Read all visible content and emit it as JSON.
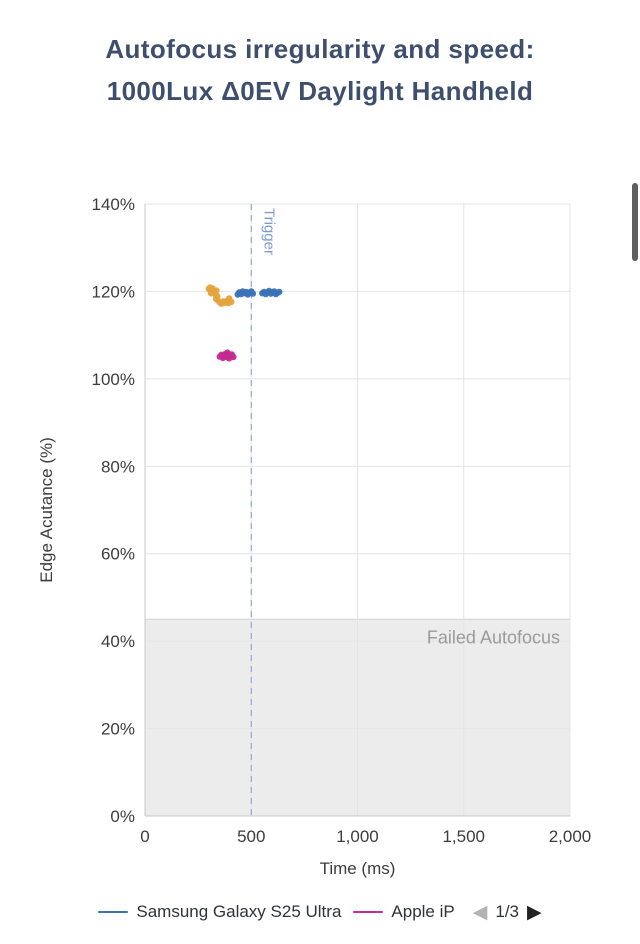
{
  "title": {
    "line1": "Autofocus irregularity and speed:",
    "line2": "1000Lux Δ0EV Daylight Handheld"
  },
  "chart_data": {
    "type": "scatter",
    "title": "Autofocus irregularity and speed: 1000Lux Δ0EV Daylight Handheld",
    "xlabel": "Time (ms)",
    "ylabel": "Edge Acutance (%)",
    "xlim": [
      0,
      2000
    ],
    "ylim": [
      0,
      140
    ],
    "x_ticks": [
      0,
      500,
      1000,
      1500,
      2000
    ],
    "x_tick_labels": [
      "0",
      "500",
      "1,000",
      "1,500",
      "2,000"
    ],
    "y_ticks": [
      0,
      20,
      40,
      60,
      80,
      100,
      120,
      140
    ],
    "y_tick_labels": [
      "0%",
      "20%",
      "40%",
      "60%",
      "80%",
      "100%",
      "120%",
      "140%"
    ],
    "grid": true,
    "grid_color": "#e4e4e4",
    "axis_color": "#c9c9c9",
    "trigger": {
      "x": 500,
      "label": "Trigger",
      "color": "#7f9bcd"
    },
    "failed_region": {
      "y_min": 0,
      "y_max": 45,
      "label": "Failed Autofocus",
      "fill": "#ececec",
      "border": "#d2d2d2",
      "label_color": "#9b9b9b"
    },
    "series": [
      {
        "name": "Samsung Galaxy S25 Ultra",
        "color": "#3a72b8",
        "points": [
          [
            436,
            119.3
          ],
          [
            444,
            119.8
          ],
          [
            452,
            119.4
          ],
          [
            460,
            120.0
          ],
          [
            468,
            119.6
          ],
          [
            476,
            119.9
          ],
          [
            484,
            119.3
          ],
          [
            492,
            119.7
          ],
          [
            500,
            120.0
          ],
          [
            508,
            119.5
          ],
          [
            552,
            119.6
          ],
          [
            560,
            119.9
          ],
          [
            568,
            119.4
          ],
          [
            576,
            119.8
          ],
          [
            584,
            120.1
          ],
          [
            592,
            119.5
          ],
          [
            600,
            119.8
          ],
          [
            608,
            120.0
          ],
          [
            616,
            119.4
          ],
          [
            624,
            119.7
          ],
          [
            632,
            119.9
          ]
        ]
      },
      {
        "name": "Apple iP",
        "color": "#c32b90",
        "points": [
          [
            352,
            105.1
          ],
          [
            360,
            105.5
          ],
          [
            366,
            104.8
          ],
          [
            372,
            105.2
          ],
          [
            378,
            105.7
          ],
          [
            384,
            105.0
          ],
          [
            390,
            105.4
          ],
          [
            396,
            104.7
          ],
          [
            402,
            105.2
          ],
          [
            408,
            105.6
          ],
          [
            416,
            105.0
          ],
          [
            388,
            106.0
          ]
        ]
      },
      {
        "name": "",
        "color": "#e5a33e",
        "points": [
          [
            300,
            120.6
          ],
          [
            306,
            120.9
          ],
          [
            312,
            120.3
          ],
          [
            318,
            120.7
          ],
          [
            324,
            120.1
          ],
          [
            310,
            119.6
          ],
          [
            320,
            119.9
          ],
          [
            330,
            119.4
          ],
          [
            336,
            120.2
          ],
          [
            340,
            118.9
          ],
          [
            334,
            118.3
          ],
          [
            344,
            117.9
          ],
          [
            352,
            117.5
          ],
          [
            360,
            117.2
          ],
          [
            368,
            117.7
          ],
          [
            376,
            117.4
          ],
          [
            384,
            117.8
          ],
          [
            392,
            117.3
          ],
          [
            400,
            117.9
          ],
          [
            396,
            118.4
          ],
          [
            406,
            117.6
          ]
        ]
      }
    ]
  },
  "legend": {
    "items": [
      {
        "label": "Samsung Galaxy S25 Ultra",
        "color": "#3a72b8"
      },
      {
        "label": "Apple iP",
        "color": "#c32b90"
      }
    ],
    "page": "1/3",
    "prev_icon": "◀",
    "next_icon": "▶"
  }
}
